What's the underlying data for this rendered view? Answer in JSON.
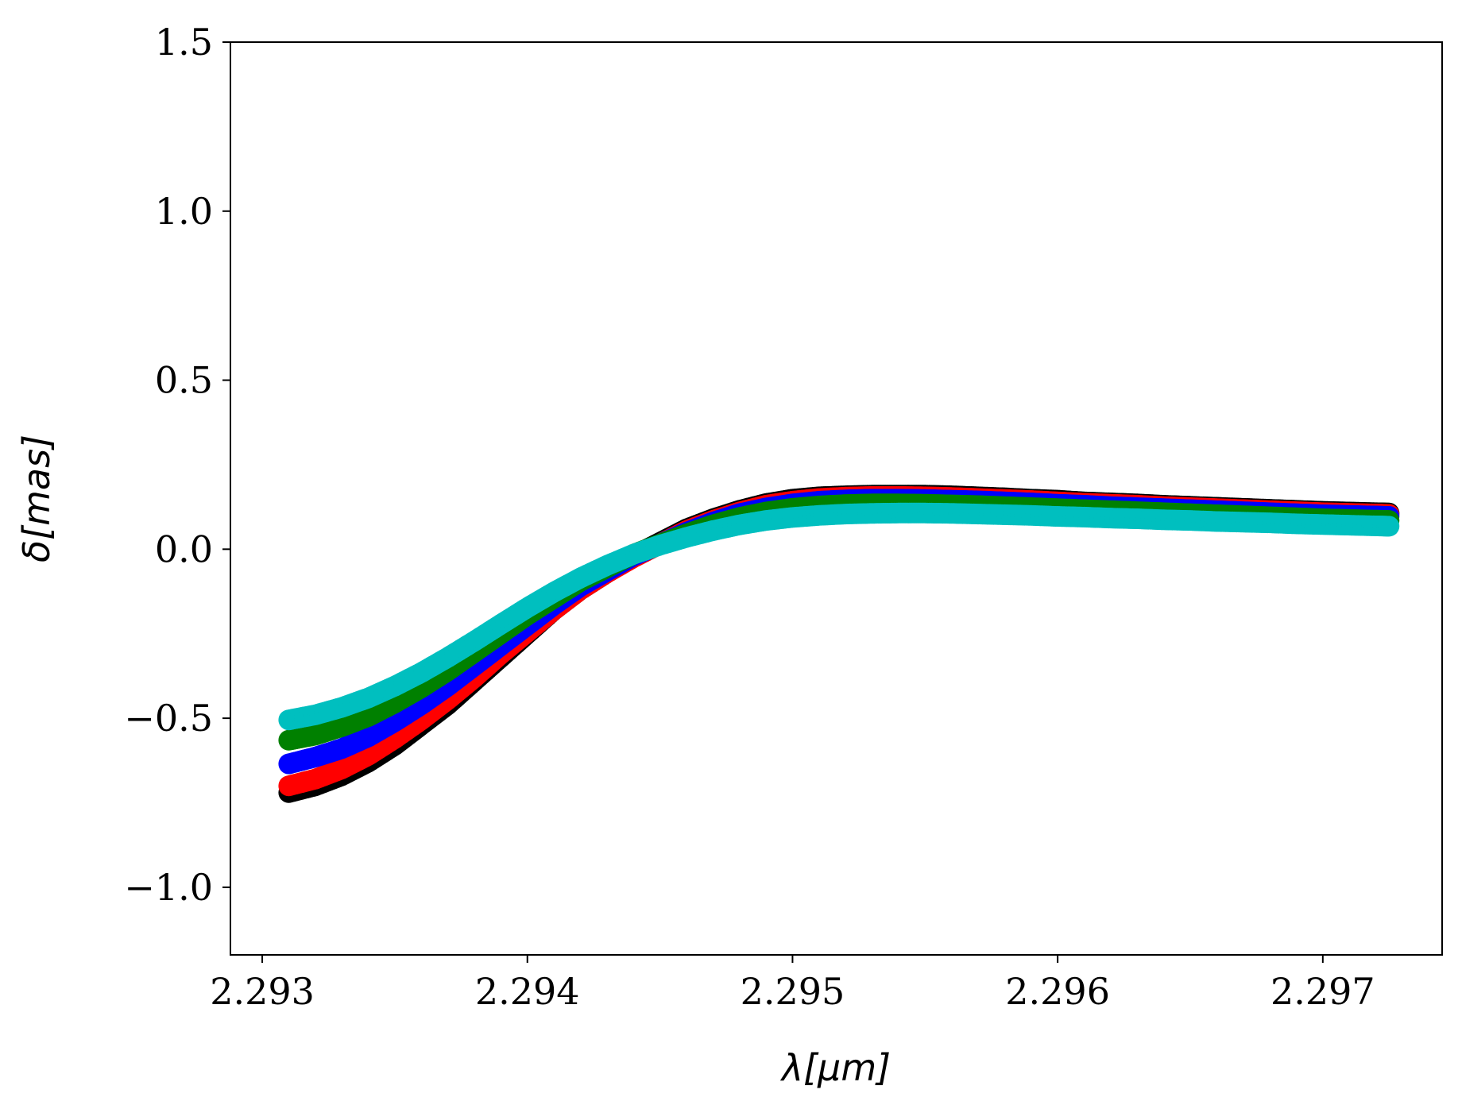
{
  "chart_data": {
    "type": "scatter",
    "title": "",
    "xlabel": "λ[μm]",
    "ylabel": "δ[mas]",
    "xlim": [
      2.29288,
      2.29745
    ],
    "ylim": [
      -1.2,
      1.5
    ],
    "xticks": [
      2.293,
      2.294,
      2.295,
      2.296,
      2.297
    ],
    "xtick_labels": [
      "2.293",
      "2.294",
      "2.295",
      "2.296",
      "2.297"
    ],
    "yticks": [
      -1.0,
      -0.5,
      0.0,
      0.5,
      1.0,
      1.5
    ],
    "ytick_labels": [
      "−1.0",
      "−0.5",
      "0.0",
      "0.5",
      "1.0",
      "1.5"
    ],
    "grid": false,
    "legend": "none",
    "x": [
      2.2931,
      2.2932,
      2.2933,
      2.2934,
      2.2935,
      2.2936,
      2.2937,
      2.2938,
      2.2939,
      2.294,
      2.2941,
      2.2942,
      2.2943,
      2.2944,
      2.2945,
      2.2946,
      2.2947,
      2.2948,
      2.2949,
      2.295,
      2.2951,
      2.2952,
      2.2953,
      2.2954,
      2.2955,
      2.2956,
      2.2957,
      2.2958,
      2.2959,
      2.296,
      2.2961,
      2.2962,
      2.2963,
      2.2964,
      2.2965,
      2.2966,
      2.2967,
      2.2968,
      2.2969,
      2.297,
      2.2971,
      2.2972,
      2.29725
    ],
    "series": [
      {
        "color": "#000000",
        "values": [
          -0.72,
          -0.7,
          -0.67,
          -0.63,
          -0.58,
          -0.52,
          -0.46,
          -0.39,
          -0.32,
          -0.25,
          -0.18,
          -0.12,
          -0.07,
          -0.02,
          0.02,
          0.06,
          0.09,
          0.115,
          0.135,
          0.148,
          0.155,
          0.158,
          0.16,
          0.16,
          0.16,
          0.158,
          0.155,
          0.152,
          0.148,
          0.145,
          0.14,
          0.137,
          0.134,
          0.13,
          0.127,
          0.124,
          0.121,
          0.118,
          0.115,
          0.112,
          0.11,
          0.108,
          0.107
        ]
      },
      {
        "color": "#ff0000",
        "values": [
          -0.7,
          -0.68,
          -0.65,
          -0.61,
          -0.56,
          -0.505,
          -0.445,
          -0.38,
          -0.31,
          -0.245,
          -0.18,
          -0.12,
          -0.07,
          -0.025,
          0.015,
          0.055,
          0.085,
          0.11,
          0.13,
          0.142,
          0.15,
          0.154,
          0.156,
          0.156,
          0.155,
          0.153,
          0.15,
          0.147,
          0.144,
          0.14,
          0.136,
          0.133,
          0.13,
          0.126,
          0.123,
          0.12,
          0.117,
          0.114,
          0.111,
          0.108,
          0.106,
          0.104,
          0.103
        ]
      },
      {
        "color": "#0000ff",
        "values": [
          -0.635,
          -0.615,
          -0.59,
          -0.555,
          -0.51,
          -0.46,
          -0.405,
          -0.345,
          -0.285,
          -0.225,
          -0.165,
          -0.11,
          -0.065,
          -0.02,
          0.015,
          0.05,
          0.08,
          0.105,
          0.122,
          0.134,
          0.142,
          0.146,
          0.148,
          0.148,
          0.147,
          0.145,
          0.143,
          0.14,
          0.137,
          0.133,
          0.13,
          0.126,
          0.123,
          0.12,
          0.117,
          0.114,
          0.111,
          0.108,
          0.105,
          0.102,
          0.1,
          0.098,
          0.097
        ]
      },
      {
        "color": "#008000",
        "values": [
          -0.565,
          -0.55,
          -0.525,
          -0.495,
          -0.455,
          -0.41,
          -0.36,
          -0.305,
          -0.25,
          -0.195,
          -0.145,
          -0.095,
          -0.055,
          -0.015,
          0.015,
          0.045,
          0.072,
          0.094,
          0.11,
          0.121,
          0.128,
          0.132,
          0.134,
          0.134,
          0.133,
          0.131,
          0.129,
          0.126,
          0.123,
          0.12,
          0.117,
          0.114,
          0.111,
          0.108,
          0.105,
          0.102,
          0.099,
          0.096,
          0.093,
          0.09,
          0.088,
          0.086,
          0.085
        ]
      },
      {
        "color": "#00bfbf",
        "values": [
          -0.505,
          -0.49,
          -0.468,
          -0.44,
          -0.405,
          -0.365,
          -0.32,
          -0.272,
          -0.222,
          -0.173,
          -0.127,
          -0.085,
          -0.048,
          -0.015,
          0.012,
          0.035,
          0.055,
          0.072,
          0.085,
          0.094,
          0.1,
          0.104,
          0.106,
          0.107,
          0.107,
          0.106,
          0.104,
          0.102,
          0.1,
          0.097,
          0.095,
          0.092,
          0.09,
          0.087,
          0.085,
          0.082,
          0.08,
          0.078,
          0.075,
          0.073,
          0.071,
          0.069,
          0.068
        ]
      }
    ]
  }
}
